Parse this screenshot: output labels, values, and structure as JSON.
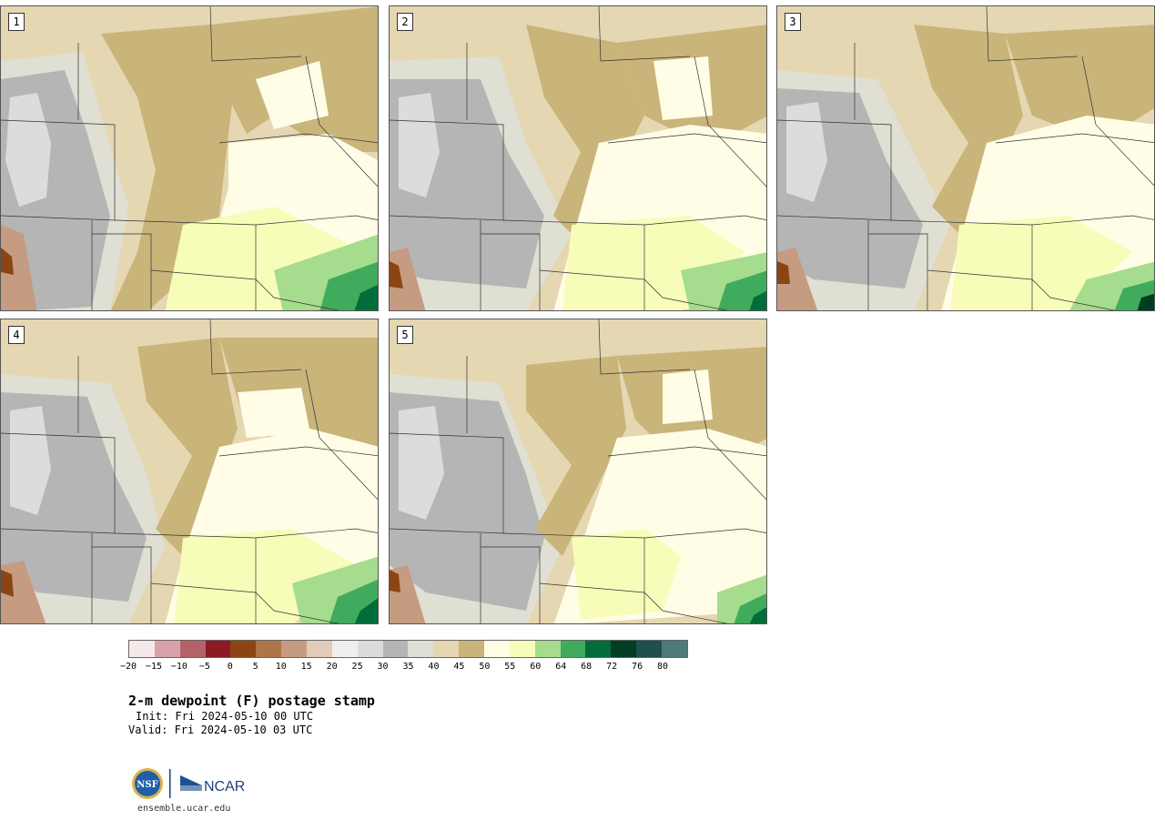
{
  "panels": [
    {
      "label": "1"
    },
    {
      "label": "2"
    },
    {
      "label": "3"
    },
    {
      "label": "4"
    },
    {
      "label": "5"
    }
  ],
  "colorbar": {
    "colors": [
      "#f5e9e9",
      "#d8a3a8",
      "#b3626a",
      "#8c1a24",
      "#8b4513",
      "#ae7548",
      "#c59c82",
      "#e2cbb8",
      "#efefef",
      "#dcdcdc",
      "#b5b5b5",
      "#dfdfd3",
      "#e5d7b2",
      "#c9b47a",
      "#fffde6",
      "#f7fcb9",
      "#a6dc8d",
      "#41ab5d",
      "#006d3a",
      "#003d23",
      "#1f4f4f",
      "#4e7a7a"
    ],
    "tick_labels": [
      "−20",
      "−15",
      "−10",
      "−5",
      "0",
      "5",
      "10",
      "15",
      "20",
      "25",
      "30",
      "35",
      "40",
      "45",
      "50",
      "55",
      "60",
      "64",
      "68",
      "72",
      "76",
      "80"
    ]
  },
  "title": "2-m dewpoint (F) postage stamp",
  "init": "Init: Fri 2024-05-10 00 UTC",
  "valid": "Valid: Fri 2024-05-10 03 UTC",
  "logos": {
    "nsf": "NSF",
    "ncar": "NCAR"
  },
  "site": "ensemble.ucar.edu"
}
